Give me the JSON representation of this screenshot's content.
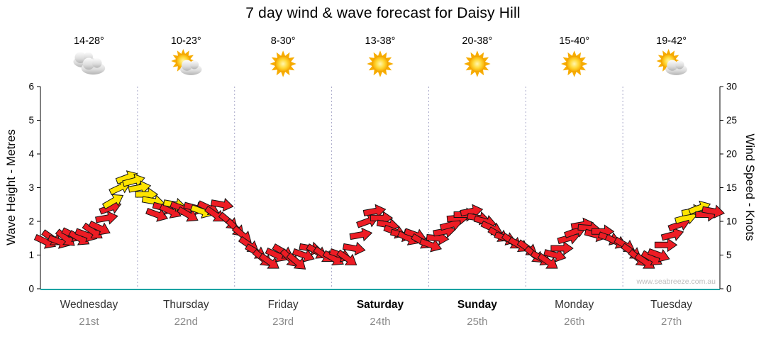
{
  "title": "7 day wind & wave forecast for Daisy Hill",
  "watermark": "www.seabreeze.com.au",
  "y_left": {
    "label": "Wave Height - Metres",
    "min": 0,
    "max": 6,
    "ticks": [
      0,
      1,
      2,
      3,
      4,
      5,
      6
    ]
  },
  "y_right": {
    "label": "Wind Speed - Knots",
    "min": 0,
    "max": 30,
    "ticks": [
      0,
      5,
      10,
      15,
      20,
      25,
      30
    ]
  },
  "days": [
    {
      "name": "Wednesday",
      "date": "21st",
      "temp": "14-28°",
      "icon": "cloudy",
      "bold": false
    },
    {
      "name": "Thursday",
      "date": "22nd",
      "temp": "10-23°",
      "icon": "sun-cloud",
      "bold": false
    },
    {
      "name": "Friday",
      "date": "23rd",
      "temp": "8-30°",
      "icon": "sunny",
      "bold": false
    },
    {
      "name": "Saturday",
      "date": "24th",
      "temp": "13-38°",
      "icon": "sunny",
      "bold": true
    },
    {
      "name": "Sunday",
      "date": "25th",
      "temp": "20-38°",
      "icon": "sunny",
      "bold": true
    },
    {
      "name": "Monday",
      "date": "26th",
      "temp": "15-40°",
      "icon": "sunny",
      "bold": false
    },
    {
      "name": "Tuesday",
      "date": "27th",
      "temp": "19-42°",
      "icon": "sun-cloud",
      "bold": false
    }
  ],
  "chart_data": {
    "type": "scatter",
    "subtype": "wind-arrow-forecast",
    "x_axis": "time in days (0 = start Wednesday, 7 = end Tuesday)",
    "y_axis": "wind speed in knots (right axis); wave height axis left 0-6 m shares same pixels",
    "ylim_knots": [
      0,
      30
    ],
    "ylim_metres": [
      0,
      6
    ],
    "dir_unit": "arrow heading, degrees clockwise from east",
    "arrow_colors": {
      "r": "#ED1C24",
      "y": "#FFE400",
      "outline": "#141414"
    },
    "point_format": [
      "t_days",
      "knots",
      "dir",
      "color"
    ],
    "points": [
      [
        0.05,
        7,
        25,
        "r"
      ],
      [
        0.12,
        7.5,
        35,
        "r"
      ],
      [
        0.19,
        7,
        20,
        "r"
      ],
      [
        0.26,
        7.5,
        40,
        "r"
      ],
      [
        0.33,
        8,
        25,
        "r"
      ],
      [
        0.4,
        7.5,
        30,
        "r"
      ],
      [
        0.47,
        8,
        20,
        "r"
      ],
      [
        0.54,
        8.5,
        35,
        "r"
      ],
      [
        0.61,
        9,
        25,
        "r"
      ],
      [
        0.68,
        10.5,
        -10,
        "r"
      ],
      [
        0.72,
        12,
        -20,
        "r"
      ],
      [
        0.75,
        13,
        -30,
        "y"
      ],
      [
        0.82,
        15,
        -25,
        "y"
      ],
      [
        0.89,
        16.5,
        -20,
        "y"
      ],
      [
        0.96,
        16,
        -15,
        "y"
      ],
      [
        1.02,
        15,
        -10,
        "y"
      ],
      [
        1.09,
        14,
        0,
        "y"
      ],
      [
        1.16,
        13,
        10,
        "y"
      ],
      [
        1.2,
        11,
        20,
        "r"
      ],
      [
        1.27,
        12,
        15,
        "r"
      ],
      [
        1.34,
        11.5,
        25,
        "r"
      ],
      [
        1.38,
        12.5,
        10,
        "y"
      ],
      [
        1.45,
        12,
        20,
        "r"
      ],
      [
        1.52,
        11,
        30,
        "r"
      ],
      [
        1.59,
        12,
        15,
        "r"
      ],
      [
        1.66,
        11.5,
        20,
        "y"
      ],
      [
        1.73,
        12,
        25,
        "r"
      ],
      [
        1.8,
        11,
        35,
        "r"
      ],
      [
        1.87,
        12.5,
        10,
        "r"
      ],
      [
        1.94,
        10,
        40,
        "r"
      ],
      [
        2.01,
        9,
        45,
        "r"
      ],
      [
        2.08,
        8,
        40,
        "r"
      ],
      [
        2.15,
        6.5,
        35,
        "r"
      ],
      [
        2.22,
        5.5,
        30,
        "r"
      ],
      [
        2.29,
        4.5,
        40,
        "r"
      ],
      [
        2.36,
        4,
        35,
        "r"
      ],
      [
        2.43,
        5,
        25,
        "r"
      ],
      [
        2.5,
        5.5,
        30,
        "r"
      ],
      [
        2.57,
        4.5,
        45,
        "r"
      ],
      [
        2.64,
        4,
        40,
        "r"
      ],
      [
        2.71,
        5,
        20,
        "r"
      ],
      [
        2.78,
        6,
        10,
        "r"
      ],
      [
        2.85,
        5.5,
        30,
        "r"
      ],
      [
        2.92,
        5,
        35,
        "r"
      ],
      [
        3.02,
        4.5,
        30,
        "r"
      ],
      [
        3.09,
        5,
        20,
        "r"
      ],
      [
        3.16,
        4.5,
        35,
        "r"
      ],
      [
        3.23,
        6,
        10,
        "r"
      ],
      [
        3.3,
        8,
        -10,
        "r"
      ],
      [
        3.37,
        10,
        -20,
        "r"
      ],
      [
        3.44,
        11.5,
        -10,
        "r"
      ],
      [
        3.51,
        10.5,
        0,
        "r"
      ],
      [
        3.58,
        9.5,
        10,
        "r"
      ],
      [
        3.65,
        8.5,
        20,
        "r"
      ],
      [
        3.72,
        8,
        15,
        "r"
      ],
      [
        3.79,
        7.5,
        25,
        "r"
      ],
      [
        3.86,
        8,
        20,
        "r"
      ],
      [
        3.93,
        7,
        30,
        "r"
      ],
      [
        4.02,
        6.5,
        20,
        "r"
      ],
      [
        4.09,
        7.5,
        5,
        "r"
      ],
      [
        4.16,
        8.5,
        -10,
        "r"
      ],
      [
        4.23,
        9.5,
        -15,
        "r"
      ],
      [
        4.3,
        10.5,
        -5,
        "r"
      ],
      [
        4.37,
        11,
        0,
        "r"
      ],
      [
        4.44,
        11.5,
        -10,
        "r"
      ],
      [
        4.51,
        10.5,
        10,
        "r"
      ],
      [
        4.58,
        10,
        15,
        "r"
      ],
      [
        4.65,
        9,
        25,
        "r"
      ],
      [
        4.72,
        8,
        30,
        "r"
      ],
      [
        4.79,
        7.5,
        20,
        "r"
      ],
      [
        4.86,
        7,
        35,
        "r"
      ],
      [
        4.93,
        6.5,
        30,
        "r"
      ],
      [
        5.02,
        6,
        35,
        "r"
      ],
      [
        5.09,
        5,
        40,
        "r"
      ],
      [
        5.16,
        4.5,
        30,
        "r"
      ],
      [
        5.23,
        4,
        35,
        "r"
      ],
      [
        5.3,
        5,
        15,
        "r"
      ],
      [
        5.37,
        6,
        0,
        "r"
      ],
      [
        5.44,
        7.5,
        -15,
        "r"
      ],
      [
        5.51,
        8.5,
        -20,
        "r"
      ],
      [
        5.58,
        9.5,
        -10,
        "r"
      ],
      [
        5.65,
        9,
        5,
        "r"
      ],
      [
        5.72,
        8,
        15,
        "r"
      ],
      [
        5.79,
        8.5,
        0,
        "r"
      ],
      [
        5.86,
        7.5,
        20,
        "r"
      ],
      [
        5.93,
        7,
        25,
        "r"
      ],
      [
        6.02,
        6.5,
        30,
        "r"
      ],
      [
        6.09,
        5.5,
        35,
        "r"
      ],
      [
        6.16,
        4.5,
        40,
        "r"
      ],
      [
        6.23,
        4,
        35,
        "r"
      ],
      [
        6.3,
        4.5,
        30,
        "r"
      ],
      [
        6.37,
        5,
        20,
        "r"
      ],
      [
        6.44,
        6.5,
        0,
        "r"
      ],
      [
        6.51,
        8,
        -15,
        "r"
      ],
      [
        6.58,
        9.5,
        -20,
        "r"
      ],
      [
        6.65,
        10.5,
        -15,
        "y"
      ],
      [
        6.72,
        11.5,
        -10,
        "y"
      ],
      [
        6.79,
        12,
        -20,
        "y"
      ],
      [
        6.86,
        11,
        0,
        "r"
      ],
      [
        6.93,
        11.5,
        10,
        "r"
      ]
    ]
  }
}
